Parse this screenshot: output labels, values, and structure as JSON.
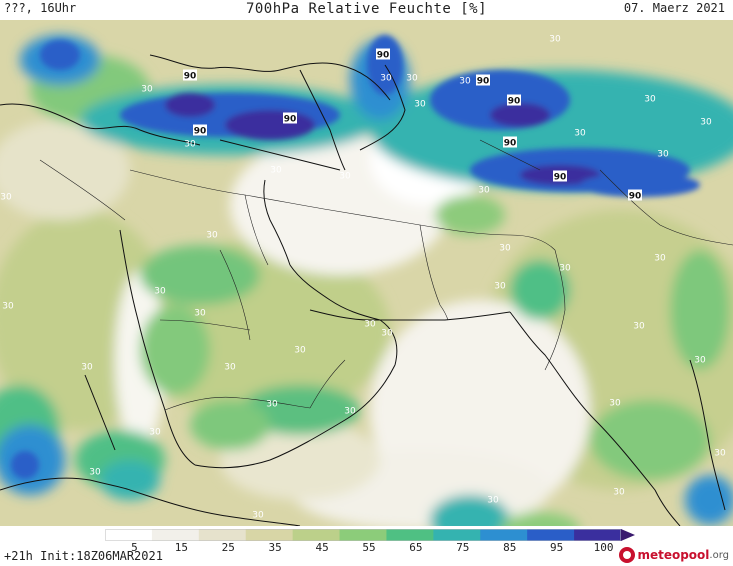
{
  "header": {
    "left": "???, 16Uhr",
    "center": "700hPa Relative Feuchte [%]",
    "right": "07. Maerz 2021"
  },
  "footer": {
    "left": "+21h Init:18Z06MAR2021",
    "logo_main": "meteopool",
    "logo_tld": ".org"
  },
  "colorbar": {
    "ticks": [
      "5",
      "15",
      "25",
      "35",
      "45",
      "55",
      "65",
      "75",
      "85",
      "95",
      "100"
    ],
    "colors": [
      "#ffffff",
      "#f2f0ea",
      "#e6e2cc",
      "#d8d6a6",
      "#bcd08a",
      "#8ccc7a",
      "#4fc083",
      "#34b3b0",
      "#2d8fd1",
      "#2a5ec8",
      "#3a2f9e",
      "#3a1a6e"
    ]
  },
  "contour_labels": [
    "90",
    "90",
    "90",
    "90",
    "90",
    "90",
    "90",
    "90",
    "90",
    "30",
    "30",
    "30",
    "30",
    "30",
    "30",
    "30",
    "30",
    "30",
    "30",
    "30",
    "30",
    "30",
    "30",
    "30",
    "30",
    "30",
    "30",
    "30",
    "30",
    "30",
    "30",
    "30",
    "30",
    "30",
    "30",
    "30",
    "30",
    "30",
    "30",
    "30",
    "30",
    "30",
    "30",
    "30",
    "30",
    "30",
    "30",
    "30"
  ]
}
